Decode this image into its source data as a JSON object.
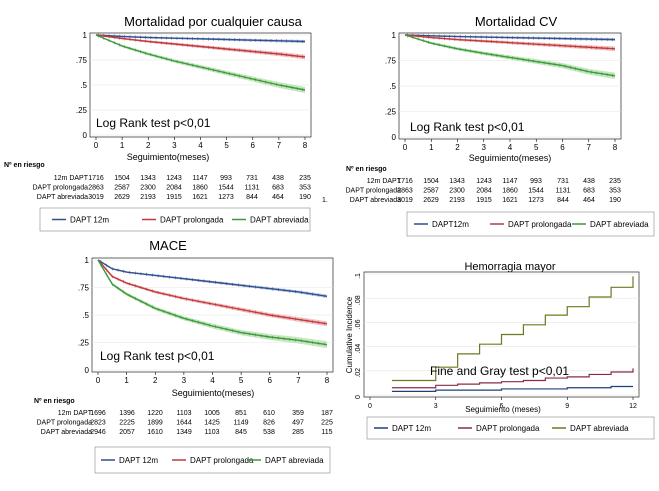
{
  "colors": {
    "dapt12": "#2f4f8f",
    "prolongada": "#c0393f",
    "abreviada": "#3a9a3a",
    "band12": "#b9c8e6",
    "bandProl": "#f0b8b8",
    "bandAbr": "#b8e0b0",
    "hemo12": "#1f3f7a",
    "hemoProl": "#8a2a4a",
    "hemoAbr": "#6b7a1e"
  },
  "chart_data": [
    {
      "id": "mortalidad",
      "type": "line",
      "title": "Mortalidad por cualquier causa",
      "xlabel": "Seguimiento(meses)",
      "ylabel": "",
      "xlim": [
        0,
        8
      ],
      "ylim": [
        0,
        1
      ],
      "xticks": [
        "0",
        "1",
        "2",
        "3",
        "4",
        "5",
        "6",
        "7",
        "8"
      ],
      "yticks": [
        "0",
        ".25",
        ".5",
        ".75",
        "1"
      ],
      "annotation": "Log Rank test p<0,01",
      "risk_header": "Nº en riesgo",
      "risk_table": [
        {
          "label": "12m DAPT",
          "values": [
            "1716",
            "1504",
            "1343",
            "1243",
            "1147",
            "993",
            "731",
            "438",
            "235"
          ]
        },
        {
          "label": "DAPT prolongada",
          "values": [
            "2863",
            "2587",
            "2300",
            "2084",
            "1860",
            "1544",
            "1131",
            "683",
            "353"
          ]
        },
        {
          "label": "DAPT abreviada",
          "values": [
            "3019",
            "2629",
            "2193",
            "1915",
            "1621",
            "1273",
            "844",
            "464",
            "190"
          ]
        }
      ],
      "legend": [
        "DAPT 12m",
        "DAPT prolongada",
        "DAPT abreviada"
      ],
      "series": [
        {
          "name": "DAPT 12m",
          "x": [
            0,
            1,
            2,
            3,
            4,
            5,
            6,
            7,
            8
          ],
          "y": [
            1.0,
            0.985,
            0.975,
            0.968,
            0.962,
            0.955,
            0.948,
            0.942,
            0.935
          ]
        },
        {
          "name": "DAPT prolongada",
          "x": [
            0,
            1,
            2,
            3,
            4,
            5,
            6,
            7,
            8
          ],
          "y": [
            1.0,
            0.965,
            0.935,
            0.91,
            0.885,
            0.86,
            0.835,
            0.81,
            0.78
          ]
        },
        {
          "name": "DAPT abreviada",
          "x": [
            0,
            1,
            2,
            3,
            4,
            5,
            6,
            7,
            8
          ],
          "y": [
            1.0,
            0.89,
            0.81,
            0.74,
            0.68,
            0.62,
            0.56,
            0.5,
            0.45
          ]
        }
      ]
    },
    {
      "id": "cv",
      "type": "line",
      "title": "Mortalidad CV",
      "xlabel": "Seguimiento(meses)",
      "ylabel": "",
      "xlim": [
        0,
        8
      ],
      "ylim": [
        0,
        1
      ],
      "xticks": [
        "0",
        "1",
        "2",
        "3",
        "4",
        "5",
        "6",
        "7",
        "8"
      ],
      "yticks": [
        "0",
        ".25",
        ".5",
        ".75",
        "1"
      ],
      "annotation": "Log Rank test p<0,01",
      "risk_header": "Nº en riesgo",
      "risk_table": [
        {
          "label": "12m DAPT",
          "values": [
            "1716",
            "1504",
            "1343",
            "1243",
            "1147",
            "993",
            "731",
            "438",
            "235"
          ]
        },
        {
          "label": "DAPT prolongada",
          "values": [
            "2863",
            "2587",
            "2300",
            "2084",
            "1860",
            "1544",
            "1131",
            "683",
            "353"
          ]
        },
        {
          "label": "DAPT abreviada",
          "values": [
            "3019",
            "2629",
            "2193",
            "1915",
            "1621",
            "1273",
            "844",
            "464",
            "190"
          ]
        }
      ],
      "row_note": "1.",
      "legend": [
        "DAPT12m",
        "DAPT prolongada",
        "DAPT abreviada"
      ],
      "series": [
        {
          "name": "DAPT12m",
          "x": [
            0,
            1,
            2,
            3,
            4,
            5,
            6,
            7,
            8
          ],
          "y": [
            1.0,
            0.992,
            0.985,
            0.98,
            0.975,
            0.97,
            0.965,
            0.96,
            0.955
          ]
        },
        {
          "name": "DAPT prolongada",
          "x": [
            0,
            1,
            2,
            3,
            4,
            5,
            6,
            7,
            8
          ],
          "y": [
            1.0,
            0.975,
            0.955,
            0.94,
            0.925,
            0.91,
            0.895,
            0.88,
            0.865
          ]
        },
        {
          "name": "DAPT abreviada",
          "x": [
            0,
            1,
            2,
            3,
            4,
            5,
            6,
            7,
            8
          ],
          "y": [
            1.0,
            0.92,
            0.865,
            0.82,
            0.78,
            0.74,
            0.7,
            0.64,
            0.6
          ]
        }
      ]
    },
    {
      "id": "mace",
      "type": "line",
      "title": "MACE",
      "xlabel": "Seguimiento(meses)",
      "ylabel": "",
      "xlim": [
        0,
        8
      ],
      "ylim": [
        0,
        1
      ],
      "xticks": [
        "0",
        "1",
        "2",
        "3",
        "4",
        "5",
        "6",
        "7",
        "8"
      ],
      "yticks": [
        "0",
        ".25",
        ".5",
        ".75",
        "1"
      ],
      "annotation": "Log Rank test p<0,01",
      "risk_header": "Nº en riesgo",
      "risk_table": [
        {
          "label": "12m DAPT",
          "values": [
            "1696",
            "1396",
            "1220",
            "1103",
            "1005",
            "851",
            "610",
            "359",
            "187"
          ]
        },
        {
          "label": "DAPT prolongada",
          "values": [
            "2823",
            "2225",
            "1899",
            "1644",
            "1425",
            "1149",
            "826",
            "497",
            "225"
          ]
        },
        {
          "label": "DAPT abreviada",
          "values": [
            "2946",
            "2057",
            "1610",
            "1349",
            "1103",
            "845",
            "538",
            "285",
            "115"
          ]
        }
      ],
      "legend": [
        "DAPT 12m",
        "DAPT prolongada",
        "DAPT abreviada"
      ],
      "series": [
        {
          "name": "DAPT 12m",
          "x": [
            0,
            0.5,
            1,
            2,
            3,
            4,
            5,
            6,
            7,
            8
          ],
          "y": [
            1.0,
            0.92,
            0.89,
            0.86,
            0.83,
            0.8,
            0.77,
            0.74,
            0.71,
            0.67
          ]
        },
        {
          "name": "DAPT prolongada",
          "x": [
            0,
            0.5,
            1,
            2,
            3,
            4,
            5,
            6,
            7,
            8
          ],
          "y": [
            1.0,
            0.85,
            0.79,
            0.71,
            0.65,
            0.6,
            0.55,
            0.5,
            0.46,
            0.42
          ]
        },
        {
          "name": "DAPT abreviada",
          "x": [
            0,
            0.5,
            1,
            2,
            3,
            4,
            5,
            6,
            7,
            8
          ],
          "y": [
            1.0,
            0.78,
            0.69,
            0.56,
            0.47,
            0.4,
            0.34,
            0.3,
            0.27,
            0.23
          ]
        }
      ]
    },
    {
      "id": "hemorragia",
      "type": "line",
      "step": true,
      "title": "Hemorragia mayor",
      "xlabel": "Seguimiento (meses)",
      "ylabel": "Cumulative Incidence",
      "xlim": [
        0,
        12
      ],
      "ylim": [
        0,
        0.1
      ],
      "xticks": [
        "0",
        "3",
        "6",
        "9",
        "12"
      ],
      "yticks": [
        "0",
        ".02",
        ".04",
        ".06",
        ".08",
        ".1"
      ],
      "annotation": "Fine and Gray test p<0,01",
      "legend": [
        "DAPT 12m",
        "DAPT prolongada",
        "DAPT abreviada"
      ],
      "series": [
        {
          "name": "DAPT 12m",
          "x": [
            1,
            2,
            3,
            4,
            5,
            6,
            7,
            8,
            9,
            10,
            11,
            12
          ],
          "y": [
            0.003,
            0.003,
            0.004,
            0.004,
            0.004,
            0.005,
            0.005,
            0.005,
            0.006,
            0.006,
            0.007,
            0.007
          ]
        },
        {
          "name": "DAPT prolongada",
          "x": [
            1,
            2,
            3,
            4,
            5,
            6,
            7,
            8,
            9,
            10,
            11,
            12
          ],
          "y": [
            0.006,
            0.006,
            0.008,
            0.009,
            0.01,
            0.011,
            0.012,
            0.014,
            0.015,
            0.017,
            0.019,
            0.022
          ]
        },
        {
          "name": "DAPT abreviada",
          "x": [
            1,
            2,
            3,
            4,
            5,
            6,
            7,
            8,
            9,
            10,
            11,
            12
          ],
          "y": [
            0.012,
            0.012,
            0.023,
            0.034,
            0.042,
            0.05,
            0.058,
            0.066,
            0.073,
            0.081,
            0.089,
            0.098
          ]
        }
      ]
    }
  ]
}
